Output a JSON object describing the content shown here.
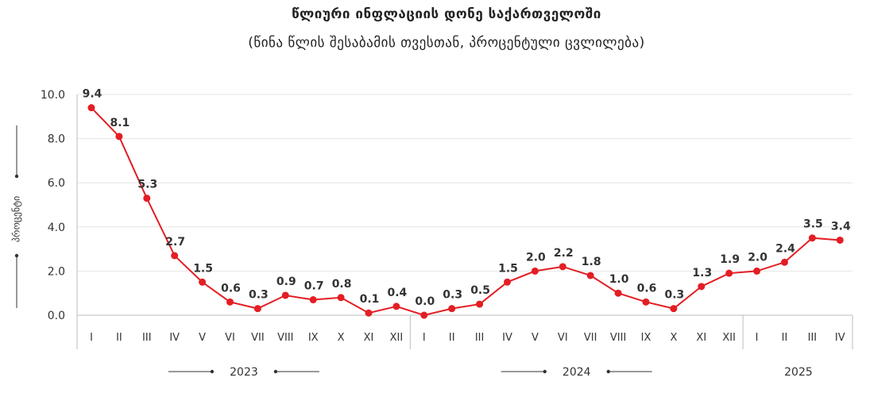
{
  "chart_data": {
    "type": "line",
    "title": "წლიური ინფლაციის დონე საქართველოში",
    "subtitle": "(წინა წლის შესაბამის თვესთან, პროცენტული ცვლილება)",
    "ylabel": "პროცენტი",
    "ylim": [
      0,
      10
    ],
    "yticks": [
      "0.0",
      "2.0",
      "4.0",
      "6.0",
      "8.0",
      "10.0"
    ],
    "grid": true,
    "categories": [
      "I",
      "II",
      "III",
      "IV",
      "V",
      "VI",
      "VII",
      "VIII",
      "IX",
      "X",
      "XI",
      "XII",
      "I",
      "II",
      "III",
      "IV",
      "V",
      "VI",
      "VII",
      "VIII",
      "IX",
      "X",
      "XI",
      "XII",
      "I",
      "II",
      "III",
      "IV"
    ],
    "values": [
      9.4,
      8.1,
      5.3,
      2.7,
      1.5,
      0.6,
      0.3,
      0.9,
      0.7,
      0.8,
      0.1,
      0.4,
      0.0,
      0.3,
      0.5,
      1.5,
      2.0,
      2.2,
      1.8,
      1.0,
      0.6,
      0.3,
      1.3,
      1.9,
      2.0,
      2.4,
      3.5,
      3.4
    ],
    "value_labels": [
      "9.4",
      "8.1",
      "5.3",
      "2.7",
      "1.5",
      "0.6",
      "0.3",
      "0.9",
      "0.7",
      "0.8",
      "0.1",
      "0.4",
      "0.0",
      "0.3",
      "0.5",
      "1.5",
      "2.0",
      "2.2",
      "1.8",
      "1.0",
      "0.6",
      "0.3",
      "1.3",
      "1.9",
      "2.0",
      "2.4",
      "3.5",
      "3.4"
    ],
    "years": [
      {
        "label": "2023",
        "months": 12
      },
      {
        "label": "2024",
        "months": 12
      },
      {
        "label": "2025",
        "months": 4
      }
    ],
    "line_color": "#e31e24",
    "grid_color": "#e6e6e6",
    "axis_color": "#bdbdbd"
  }
}
